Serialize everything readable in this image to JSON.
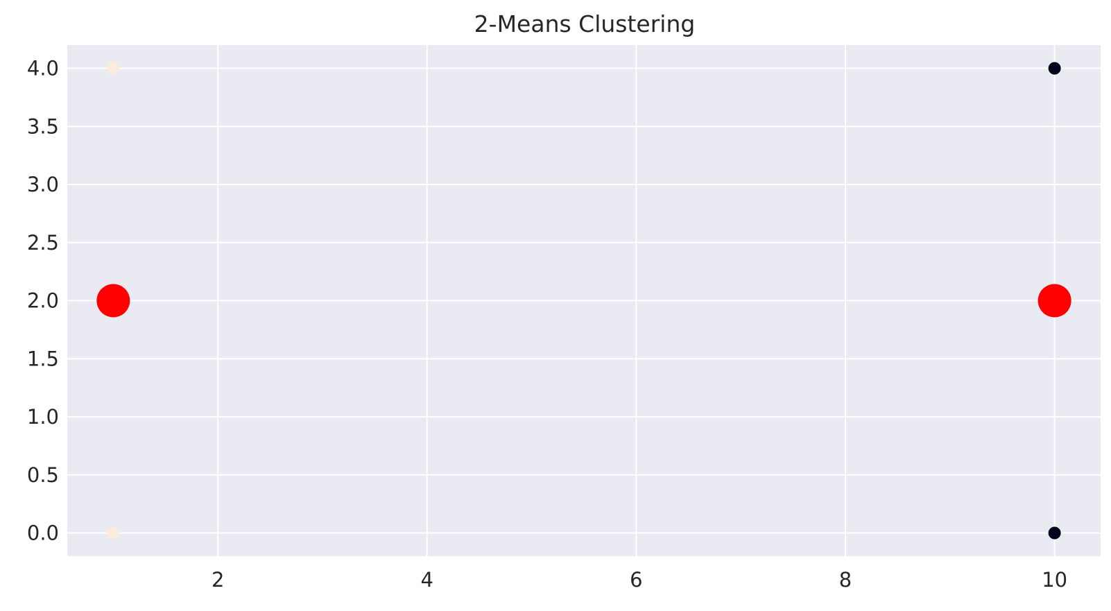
{
  "chart_data": {
    "type": "scatter",
    "title": "2-Means Clustering",
    "xlabel": "",
    "ylabel": "",
    "xlim": [
      0.56,
      10.44
    ],
    "ylim": [
      -0.2,
      4.2
    ],
    "x_ticks": [
      2,
      4,
      6,
      8,
      10
    ],
    "y_ticks": [
      0.0,
      0.5,
      1.0,
      1.5,
      2.0,
      2.5,
      3.0,
      3.5,
      4.0
    ],
    "grid": true,
    "background_color": "#EAEAF2",
    "series": [
      {
        "points": [
          {
            "x": 1,
            "y": 4,
            "color": "#FAEBDD"
          },
          {
            "x": 1,
            "y": 0,
            "color": "#FAEBDD"
          },
          {
            "x": 10,
            "y": 4,
            "color": "#03051A"
          },
          {
            "x": 10,
            "y": 0,
            "color": "#03051A"
          }
        ]
      },
      {
        "color": "#FF0000",
        "points": [
          {
            "x": 1,
            "y": 2
          },
          {
            "x": 10,
            "y": 2
          }
        ]
      }
    ]
  }
}
